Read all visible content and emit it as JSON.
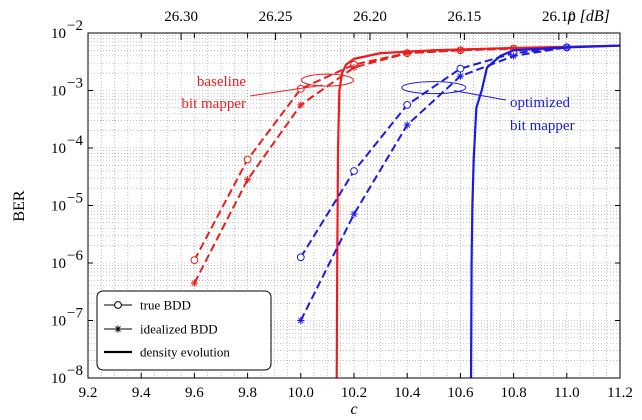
{
  "chart_data": {
    "type": "line",
    "xlabel": "c",
    "ylabel": "BER",
    "top_axis_label": "ρ [dB]",
    "xlim": [
      9.2,
      11.2
    ],
    "ylim_log10": [
      -8,
      -2
    ],
    "log_scale_y": true,
    "grid": true,
    "x_ticks": [
      9.2,
      9.4,
      9.6,
      9.8,
      10.0,
      10.2,
      10.4,
      10.6,
      10.8,
      11.0,
      11.2
    ],
    "x_tick_labels": [
      "9.2",
      "9.4",
      "9.6",
      "9.8",
      "10.0",
      "10.2",
      "10.4",
      "10.6",
      "10.8",
      "11.0",
      "11.2"
    ],
    "top_ticks_c": [
      9.55,
      9.905,
      10.26,
      10.615,
      10.97
    ],
    "top_tick_labels": [
      "26.30",
      "26.25",
      "26.20",
      "26.15",
      "26.10"
    ],
    "y_tick_exponents": [
      -8,
      -7,
      -6,
      -5,
      -4,
      -3,
      -2
    ],
    "colors": {
      "baseline": "#ee1c1c",
      "optimized": "#1a1ae6",
      "axis": "#000000"
    },
    "series": [
      {
        "group": "baseline",
        "kind": "true BDD",
        "style": "dashed",
        "marker": "circle",
        "x": [
          9.6,
          9.8,
          10.0,
          10.2,
          10.4,
          10.6,
          10.8,
          11.0
        ],
        "log10_y": [
          -5.95,
          -4.2,
          -2.97,
          -2.55,
          -2.35,
          -2.3,
          -2.27,
          -2.25
        ]
      },
      {
        "group": "baseline",
        "kind": "idealized BDD",
        "style": "dashed",
        "marker": "star",
        "x": [
          9.6,
          9.8,
          10.0,
          10.2,
          10.4,
          10.6,
          10.8,
          11.0
        ],
        "log10_y": [
          -6.35,
          -4.55,
          -3.25,
          -2.6,
          -2.35,
          -2.3,
          -2.27,
          -2.25
        ]
      },
      {
        "group": "baseline",
        "kind": "density evolution",
        "style": "solid",
        "marker": "none",
        "x": [
          10.135,
          10.137,
          10.14,
          10.145,
          10.155,
          10.17,
          10.2,
          10.3,
          10.5,
          10.8,
          11.2
        ],
        "log10_y": [
          -8,
          -6,
          -4,
          -3,
          -2.7,
          -2.55,
          -2.45,
          -2.35,
          -2.3,
          -2.26,
          -2.22
        ]
      },
      {
        "group": "optimized",
        "kind": "true BDD",
        "style": "dashed",
        "marker": "circle",
        "x": [
          10.0,
          10.2,
          10.4,
          10.6,
          10.8,
          11.0
        ],
        "log10_y": [
          -5.9,
          -4.4,
          -3.25,
          -2.62,
          -2.35,
          -2.25
        ]
      },
      {
        "group": "optimized",
        "kind": "idealized BDD",
        "style": "dashed",
        "marker": "star",
        "x": [
          10.0,
          10.2,
          10.4,
          10.6,
          10.8,
          11.0
        ],
        "log10_y": [
          -7.0,
          -5.15,
          -3.6,
          -2.75,
          -2.4,
          -2.25
        ]
      },
      {
        "group": "optimized",
        "kind": "density evolution",
        "style": "solid",
        "marker": "none",
        "x": [
          10.64,
          10.642,
          10.645,
          10.65,
          10.66,
          10.68,
          10.7,
          10.75,
          10.8,
          11.0,
          11.2
        ],
        "log10_y": [
          -8,
          -6,
          -5,
          -4.2,
          -3.3,
          -3.0,
          -2.6,
          -2.4,
          -2.3,
          -2.25,
          -2.22
        ]
      }
    ],
    "annotations": [
      {
        "group": "baseline",
        "lines": [
          "baseline",
          "bit mapper"
        ]
      },
      {
        "group": "optimized",
        "lines": [
          "optimized",
          "bit mapper"
        ]
      }
    ],
    "legend": {
      "position": "bottom-left",
      "entries": [
        {
          "label": "true BDD",
          "marker": "circle",
          "style": "thin"
        },
        {
          "label": "idealized BDD",
          "marker": "star",
          "style": "thin"
        },
        {
          "label": "density evolution",
          "marker": "none",
          "style": "thick"
        }
      ]
    }
  }
}
